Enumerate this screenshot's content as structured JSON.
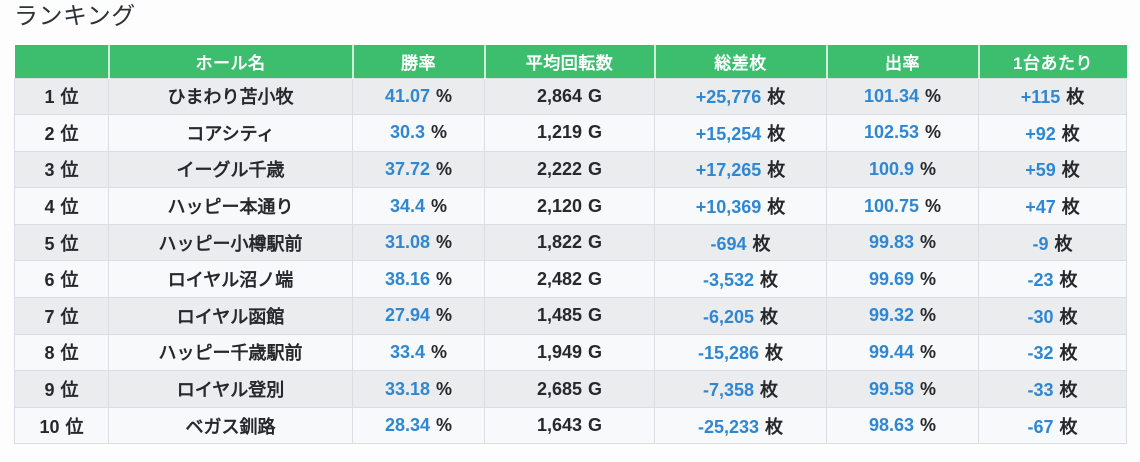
{
  "page": {
    "title": "ランキング"
  },
  "colors": {
    "header_bg": "#3dbd6e",
    "value_blue": "#2f87d2",
    "text_dark": "#26282b",
    "row_odd_bg": "#ebecee",
    "row_even_bg": "#f8f9fb",
    "border": "#dadde2"
  },
  "table": {
    "rank_suffix": "位",
    "columns": [
      {
        "key": "rank",
        "label": "",
        "unit": "",
        "value_color": "dark"
      },
      {
        "key": "hall",
        "label": "ホール名",
        "unit": "",
        "value_color": "dark"
      },
      {
        "key": "win_rate",
        "label": "勝率",
        "unit": "%",
        "value_color": "blue"
      },
      {
        "key": "avg_spins",
        "label": "平均回転数",
        "unit": "G",
        "value_color": "dark"
      },
      {
        "key": "total_diff",
        "label": "総差枚",
        "unit": "枚",
        "value_color": "blue"
      },
      {
        "key": "payout",
        "label": "出率",
        "unit": "%",
        "value_color": "blue"
      },
      {
        "key": "per_machine",
        "label": "1台あたり",
        "unit": "枚",
        "value_color": "blue"
      }
    ],
    "rows": [
      {
        "rank": "1",
        "hall": "ひまわり苫小牧",
        "win_rate": "41.07",
        "avg_spins": "2,864",
        "total_diff": "+25,776",
        "payout": "101.34",
        "per_machine": "+115"
      },
      {
        "rank": "2",
        "hall": "コアシティ",
        "win_rate": "30.3",
        "avg_spins": "1,219",
        "total_diff": "+15,254",
        "payout": "102.53",
        "per_machine": "+92"
      },
      {
        "rank": "3",
        "hall": "イーグル千歳",
        "win_rate": "37.72",
        "avg_spins": "2,222",
        "total_diff": "+17,265",
        "payout": "100.9",
        "per_machine": "+59"
      },
      {
        "rank": "4",
        "hall": "ハッピー本通り",
        "win_rate": "34.4",
        "avg_spins": "2,120",
        "total_diff": "+10,369",
        "payout": "100.75",
        "per_machine": "+47"
      },
      {
        "rank": "5",
        "hall": "ハッピー小樽駅前",
        "win_rate": "31.08",
        "avg_spins": "1,822",
        "total_diff": "-694",
        "payout": "99.83",
        "per_machine": "-9"
      },
      {
        "rank": "6",
        "hall": "ロイヤル沼ノ端",
        "win_rate": "38.16",
        "avg_spins": "2,482",
        "total_diff": "-3,532",
        "payout": "99.69",
        "per_machine": "-23"
      },
      {
        "rank": "7",
        "hall": "ロイヤル函館",
        "win_rate": "27.94",
        "avg_spins": "1,485",
        "total_diff": "-6,205",
        "payout": "99.32",
        "per_machine": "-30"
      },
      {
        "rank": "8",
        "hall": "ハッピー千歳駅前",
        "win_rate": "33.4",
        "avg_spins": "1,949",
        "total_diff": "-15,286",
        "payout": "99.44",
        "per_machine": "-32"
      },
      {
        "rank": "9",
        "hall": "ロイヤル登別",
        "win_rate": "33.18",
        "avg_spins": "2,685",
        "total_diff": "-7,358",
        "payout": "99.58",
        "per_machine": "-33"
      },
      {
        "rank": "10",
        "hall": "ベガス釧路",
        "win_rate": "28.34",
        "avg_spins": "1,643",
        "total_diff": "-25,233",
        "payout": "98.63",
        "per_machine": "-67"
      }
    ]
  }
}
